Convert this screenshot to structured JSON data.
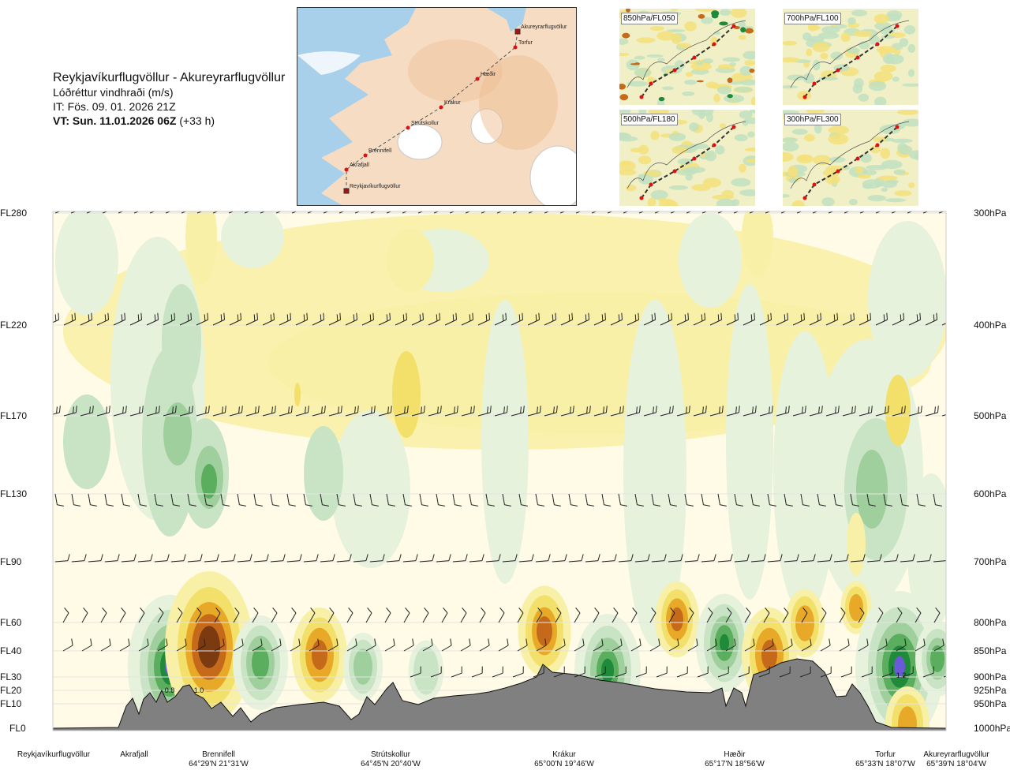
{
  "header": {
    "route_title": "Reykjavíkurflugvöllur - Akureyrarflugvöllur",
    "parameter": "Lóðréttur vindhraði (m/s)",
    "issue_time": "IT: Fös. 09. 01. 2026 21Z",
    "valid_prefix": "VT: Sun. 11.01.2026 06Z",
    "valid_suffix": "(+33 h)"
  },
  "map": {
    "waypoints": [
      "Reykjavíkurflugvöllur",
      "Akrafjall",
      "Brennifell",
      "Strútskollur",
      "Krákur",
      "Hæðir",
      "Torfur",
      "Akureyrarflugvöllur"
    ],
    "colors": {
      "sea": "#9fcbe8",
      "land": "#f3cfae",
      "land_light": "#f9e6d3",
      "ice": "#ffffff",
      "route": "#555555",
      "point": "#e01010"
    }
  },
  "mini_maps": [
    {
      "label": "850hPa/FL050"
    },
    {
      "label": "700hPa/FL100"
    },
    {
      "label": "500hPa/FL180"
    },
    {
      "label": "300hPa/FL300"
    }
  ],
  "chart_data": {
    "type": "heatmap",
    "variable": "vertical wind speed (m/s)",
    "y_levels_flight": [
      "FL280",
      "FL220",
      "FL170",
      "FL130",
      "FL90",
      "FL60",
      "FL40",
      "FL30",
      "FL20",
      "FL10",
      "FL0"
    ],
    "y_levels_pressure": [
      "300hPa",
      "400hPa",
      "500hPa",
      "600hPa",
      "700hPa",
      "800hPa",
      "850hPa",
      "900hPa",
      "925hPa",
      "950hPa",
      "1000hPa"
    ],
    "x_locations": [
      {
        "name": "Reykjavíkurflugvöllur",
        "coord": ""
      },
      {
        "name": "Akrafjall",
        "coord": ""
      },
      {
        "name": "Brennifell",
        "coord": "64°29'N 21°31'W"
      },
      {
        "name": "Strútskollur",
        "coord": "64°45'N 20°40'W"
      },
      {
        "name": "Krákur",
        "coord": "65°00'N 19°46'W"
      },
      {
        "name": "Hæðir",
        "coord": "65°17'N 18°56'W"
      },
      {
        "name": "Torfur",
        "coord": "65°33'N 18°07'W"
      },
      {
        "name": "Akureyrarflugvöllur",
        "coord": "65°39'N 18°04'W"
      }
    ],
    "annotations": [
      "0.8",
      "1.0",
      "1.2"
    ],
    "colors": {
      "strong_down": "#7b3a10",
      "down3": "#c46a1a",
      "down2": "#e8a928",
      "down1": "#f2e06a",
      "weak_down": "#f8f0a6",
      "neutral": "#fffbe6",
      "weak_up": "#e6f2dc",
      "up1": "#c8e4c4",
      "up2": "#9fcf9c",
      "up3": "#5aae5e",
      "up4": "#1f8a3a",
      "strong_up": "#6a5ad8",
      "terrain": "#808080"
    }
  }
}
